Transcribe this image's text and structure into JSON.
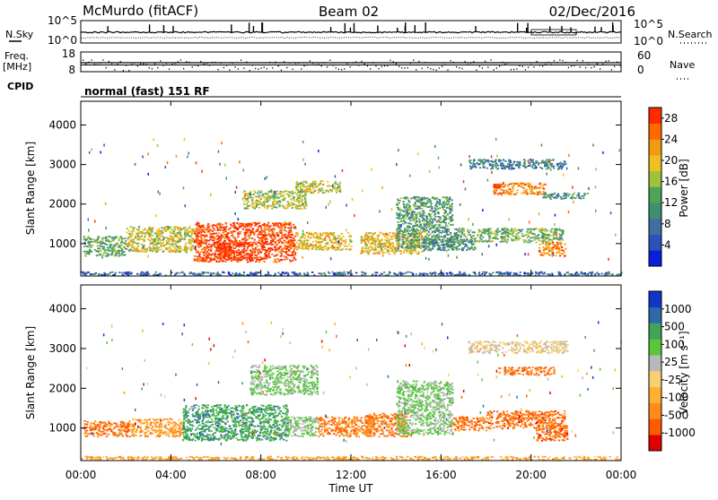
{
  "header": {
    "station": "McMurdo (fitACF)",
    "beam": "Beam 02",
    "date": "02/Dec/2016"
  },
  "strip_labels": {
    "nsky": "N.Sky",
    "nsearch": "N.Search",
    "freq": "Freq.",
    "freq_unit": "[MHz]",
    "nave": "Nave",
    "cpid": "CPID",
    "program": "normal (fast) 151 RF"
  },
  "colors": {
    "power_scale": [
      "#0a1edc",
      "#2a52b8",
      "#3f6fa0",
      "#3f8f70",
      "#4fa45a",
      "#9ec238",
      "#f0c020",
      "#f29a10",
      "#ff6a00",
      "#ff2a00"
    ],
    "velocity_scale": [
      "#e00000",
      "#ff5a00",
      "#ff8c1a",
      "#ffb030",
      "#f7d070",
      "#b8b8b8",
      "#58c83a",
      "#3fa35a",
      "#2e6aa8",
      "#1235c8"
    ]
  },
  "chart_data": [
    {
      "type": "line",
      "name": "noise-strip",
      "left_ticks": [
        "10^5",
        "10^0"
      ],
      "right_ticks": [
        "10^5",
        "10^0"
      ]
    },
    {
      "type": "line",
      "name": "frequency-strip",
      "left_ticks": [
        "18",
        "8"
      ],
      "right_ticks": [
        "60",
        "0"
      ]
    },
    {
      "type": "heatmap",
      "name": "power",
      "ylabel": "Slant Range [km]",
      "ylim": [
        180,
        4600
      ],
      "yticks": [
        1000,
        2000,
        3000,
        4000
      ],
      "colorbar": {
        "label": "Power [dB]",
        "ticks": [
          4,
          8,
          12,
          16,
          20,
          24,
          28
        ],
        "range": [
          0,
          30
        ]
      },
      "echo_regions": [
        {
          "x": [
            0.0,
            24.0
          ],
          "y": [
            210,
            300
          ],
          "level": 0.22
        },
        {
          "x": [
            0.1,
            2.0
          ],
          "y": [
            700,
            1200
          ],
          "level": 0.45
        },
        {
          "x": [
            2.0,
            5.0
          ],
          "y": [
            800,
            1450
          ],
          "level": 0.6
        },
        {
          "x": [
            5.0,
            9.5
          ],
          "y": [
            550,
            1550
          ],
          "level": 0.95
        },
        {
          "x": [
            6.0,
            7.6
          ],
          "y": [
            600,
            1050
          ],
          "level": 1.0
        },
        {
          "x": [
            9.5,
            12.0
          ],
          "y": [
            850,
            1300
          ],
          "level": 0.65
        },
        {
          "x": [
            7.2,
            10.0
          ],
          "y": [
            1900,
            2350
          ],
          "level": 0.55
        },
        {
          "x": [
            9.5,
            11.5
          ],
          "y": [
            2300,
            2600
          ],
          "level": 0.6
        },
        {
          "x": [
            12.4,
            15.2
          ],
          "y": [
            750,
            1300
          ],
          "level": 0.65
        },
        {
          "x": [
            14.0,
            16.5
          ],
          "y": [
            900,
            2200
          ],
          "level": 0.4
        },
        {
          "x": [
            15.2,
            17.5
          ],
          "y": [
            850,
            1150
          ],
          "level": 0.35
        },
        {
          "x": [
            16.5,
            21.4
          ],
          "y": [
            1050,
            1400
          ],
          "level": 0.45
        },
        {
          "x": [
            18.3,
            20.6
          ],
          "y": [
            2250,
            2550
          ],
          "level": 0.8
        },
        {
          "x": [
            20.5,
            22.5
          ],
          "y": [
            2150,
            2300
          ],
          "level": 0.35
        },
        {
          "x": [
            17.2,
            21.5
          ],
          "y": [
            2900,
            3150
          ],
          "level": 0.3
        },
        {
          "x": [
            18.3,
            18.6
          ],
          "y": [
            2420,
            2520
          ],
          "level": 1.0
        },
        {
          "x": [
            20.3,
            21.5
          ],
          "y": [
            700,
            1050
          ],
          "level": 0.8
        }
      ]
    },
    {
      "type": "heatmap",
      "name": "velocity",
      "xlabel": "Time UT",
      "ylabel": "Slant Range [km]",
      "xlim": [
        0,
        24
      ],
      "xticks": [
        "00:00",
        "04:00",
        "08:00",
        "12:00",
        "16:00",
        "20:00",
        "00:00"
      ],
      "ylim": [
        180,
        4600
      ],
      "yticks": [
        1000,
        2000,
        3000,
        4000
      ],
      "colorbar": {
        "label": "Velocity [m s⁻¹]",
        "ticks": [
          1000,
          500,
          100,
          25,
          -25,
          -100,
          -500,
          -1000
        ]
      },
      "echo_regions": [
        {
          "x": [
            0.0,
            24.0
          ],
          "y": [
            210,
            300
          ],
          "level": 0.32
        },
        {
          "x": [
            0.1,
            2.2
          ],
          "y": [
            800,
            1200
          ],
          "level": 0.2
        },
        {
          "x": [
            2.2,
            4.5
          ],
          "y": [
            800,
            1250
          ],
          "level": 0.28
        },
        {
          "x": [
            4.5,
            9.2
          ],
          "y": [
            700,
            1600
          ],
          "level": 0.75
        },
        {
          "x": [
            9.0,
            10.5
          ],
          "y": [
            800,
            1300
          ],
          "level": 0.6
        },
        {
          "x": [
            10.5,
            13.0
          ],
          "y": [
            800,
            1300
          ],
          "level": 0.22
        },
        {
          "x": [
            7.5,
            10.5
          ],
          "y": [
            1850,
            2600
          ],
          "level": 0.62
        },
        {
          "x": [
            12.6,
            14.5
          ],
          "y": [
            800,
            1400
          ],
          "level": 0.22
        },
        {
          "x": [
            14.0,
            16.5
          ],
          "y": [
            850,
            2200
          ],
          "level": 0.62
        },
        {
          "x": [
            16.5,
            18.0
          ],
          "y": [
            950,
            1300
          ],
          "level": 0.2
        },
        {
          "x": [
            18.0,
            21.5
          ],
          "y": [
            1000,
            1450
          ],
          "level": 0.18
        },
        {
          "x": [
            20.2,
            21.6
          ],
          "y": [
            700,
            1100
          ],
          "level": 0.18
        },
        {
          "x": [
            18.5,
            21.0
          ],
          "y": [
            2350,
            2550
          ],
          "level": 0.2
        },
        {
          "x": [
            17.2,
            21.6
          ],
          "y": [
            2900,
            3200
          ],
          "level": 0.48
        }
      ]
    }
  ]
}
